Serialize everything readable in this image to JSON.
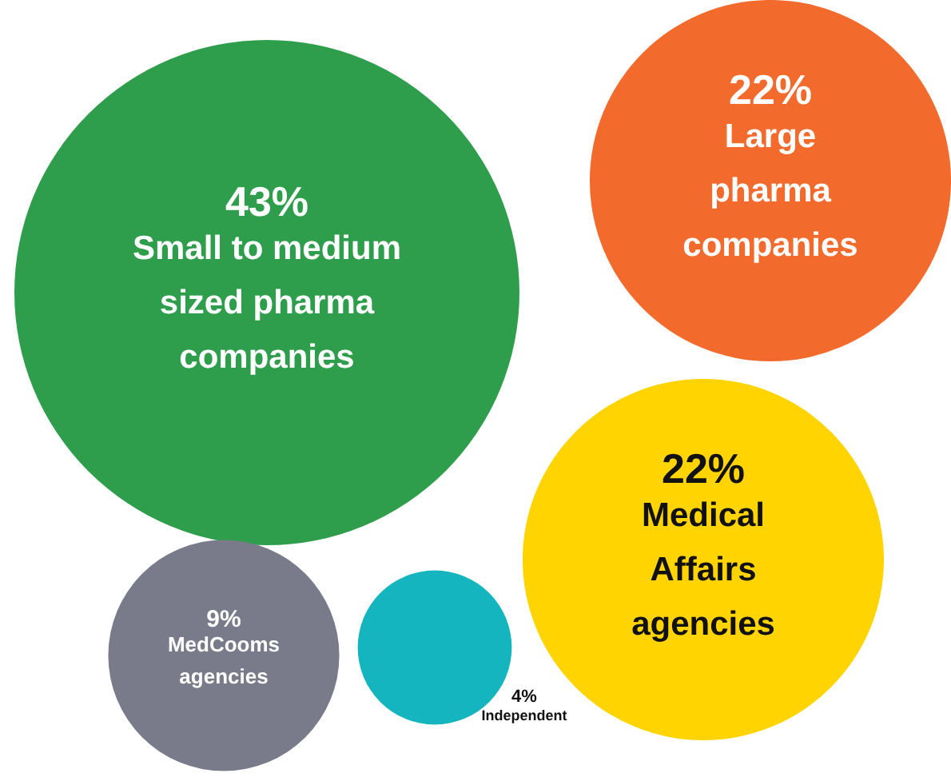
{
  "chart_data": {
    "type": "other",
    "categories": [
      "Small to medium sized pharma companies",
      "Large pharma companies",
      "Medical Affairs agencies",
      "MedCooms agencies",
      "Independent"
    ],
    "values": [
      43,
      22,
      22,
      9,
      4
    ],
    "value_labels": [
      "43%",
      "22%",
      "22%",
      "9%",
      "4%"
    ],
    "colors": [
      "#2e9e4c",
      "#f26b2d",
      "#ffd400",
      "#7a7b8a",
      "#14b5bf"
    ]
  }
}
